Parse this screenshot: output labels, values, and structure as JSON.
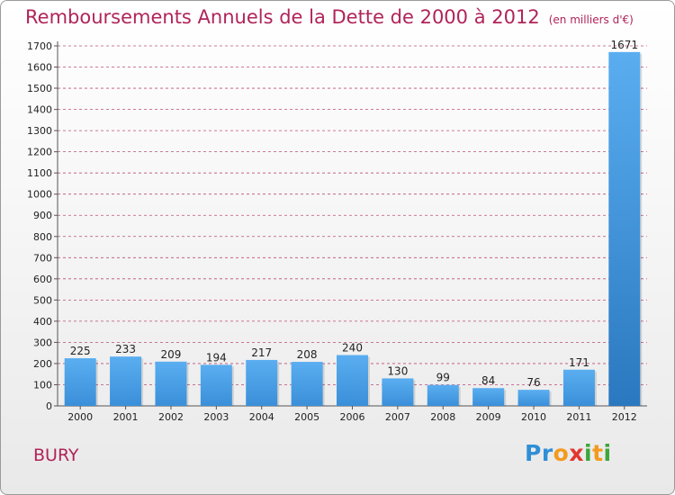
{
  "chart_data": {
    "type": "bar",
    "title": "Remboursements Annuels de la Dette de 2000 à 2012",
    "unit_note": "(en milliers d'€)",
    "categories": [
      "2000",
      "2001",
      "2002",
      "2003",
      "2004",
      "2005",
      "2006",
      "2007",
      "2008",
      "2009",
      "2010",
      "2011",
      "2012"
    ],
    "values": [
      225,
      233,
      209,
      194,
      217,
      208,
      240,
      130,
      99,
      84,
      76,
      171,
      1671
    ],
    "ylim": [
      0,
      1700
    ],
    "yticks": [
      0,
      100,
      200,
      300,
      400,
      500,
      600,
      700,
      800,
      900,
      1000,
      1100,
      1200,
      1300,
      1400,
      1500,
      1600,
      1700
    ],
    "grid": true,
    "bar_color": "#3a8fd9",
    "grid_color": "#b0245a"
  },
  "footer": {
    "city": "BURY",
    "logo_letters": [
      {
        "ch": "P",
        "color": "#2f8fd6"
      },
      {
        "ch": "r",
        "color": "#2f8fd6"
      },
      {
        "ch": "o",
        "color": "#f39a1e"
      },
      {
        "ch": "x",
        "color": "#e2362f"
      },
      {
        "ch": "i",
        "color": "#3da63a"
      },
      {
        "ch": "t",
        "color": "#f39a1e"
      },
      {
        "ch": "i",
        "color": "#3da63a"
      }
    ]
  }
}
